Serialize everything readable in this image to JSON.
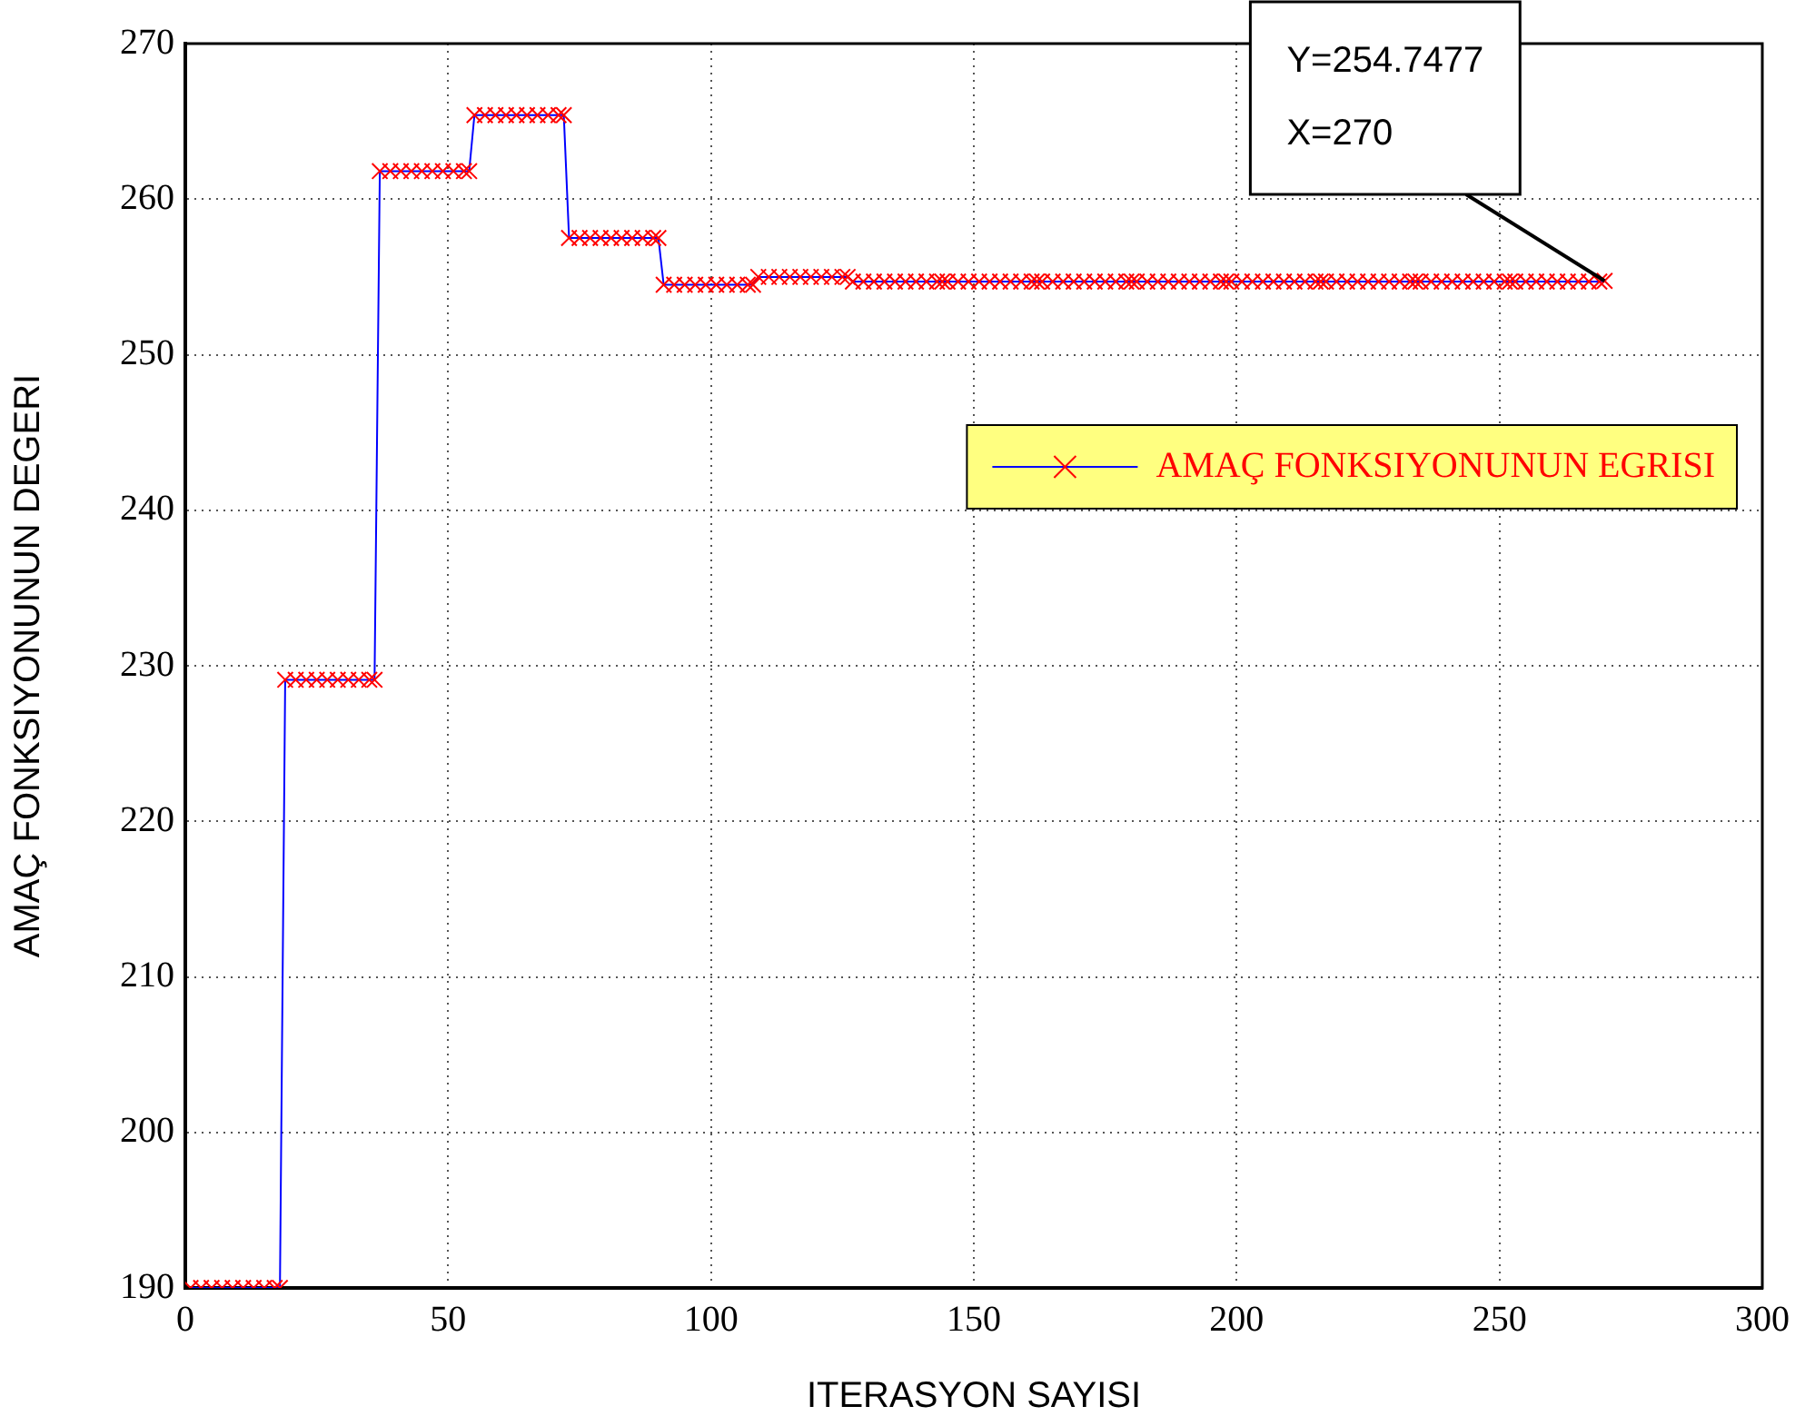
{
  "chart_data": {
    "type": "line",
    "xlabel": "ITERASYON SAYISI",
    "ylabel": "AMAÇ FONKSIYONUNUN DEGERI",
    "xlim": [
      0,
      300
    ],
    "xticks": [
      0,
      50,
      100,
      150,
      200,
      250,
      300
    ],
    "ylim": [
      190,
      270
    ],
    "yticks": [
      190,
      200,
      210,
      220,
      230,
      240,
      250,
      260,
      270
    ],
    "grid": true,
    "legend": "right",
    "marker": "cross",
    "line_style": "solid",
    "annotations": [
      {
        "text": "Y=254.7477\nX=270",
        "x": 270,
        "y": 254.7477
      }
    ],
    "series": [
      {
        "name": "AMAÇ FONKSIYONUNUN EGRISI",
        "color": "#ff0000",
        "x": [
          1,
          3,
          5,
          7,
          9,
          11,
          13,
          15,
          17,
          18,
          19,
          21,
          23,
          25,
          27,
          29,
          31,
          33,
          35,
          36,
          37,
          39,
          41,
          43,
          45,
          47,
          49,
          51,
          53,
          54,
          55,
          57,
          59,
          61,
          63,
          65,
          67,
          69,
          71,
          72,
          73,
          75,
          77,
          79,
          81,
          83,
          85,
          87,
          89,
          90,
          91,
          93,
          95,
          97,
          99,
          101,
          103,
          105,
          107,
          108,
          109,
          111,
          113,
          115,
          117,
          119,
          121,
          123,
          125,
          126,
          127,
          129,
          131,
          133,
          135,
          137,
          139,
          141,
          143,
          144,
          145,
          147,
          149,
          151,
          153,
          155,
          157,
          159,
          161,
          162,
          163,
          165,
          167,
          169,
          171,
          173,
          175,
          177,
          179,
          180,
          181,
          183,
          185,
          187,
          189,
          191,
          193,
          195,
          197,
          198,
          199,
          201,
          203,
          205,
          207,
          209,
          211,
          213,
          215,
          216,
          217,
          219,
          221,
          223,
          225,
          227,
          229,
          231,
          233,
          234,
          235,
          237,
          239,
          241,
          243,
          245,
          247,
          249,
          251,
          252,
          253,
          255,
          257,
          259,
          261,
          263,
          265,
          267,
          269,
          270
        ],
        "values": [
          190,
          190,
          190,
          190,
          190,
          190,
          190,
          190,
          190,
          190,
          229.1,
          229.1,
          229.1,
          229.1,
          229.1,
          229.1,
          229.1,
          229.1,
          229.1,
          229.1,
          261.8,
          261.8,
          261.8,
          261.8,
          261.8,
          261.8,
          261.8,
          261.8,
          261.8,
          261.8,
          265.4,
          265.4,
          265.4,
          265.4,
          265.4,
          265.4,
          265.4,
          265.4,
          265.4,
          265.4,
          257.5,
          257.5,
          257.5,
          257.5,
          257.5,
          257.5,
          257.5,
          257.5,
          257.5,
          257.5,
          254.5,
          254.5,
          254.5,
          254.5,
          254.5,
          254.5,
          254.5,
          254.5,
          254.5,
          254.5,
          255,
          255,
          255,
          255,
          255,
          255,
          255,
          255,
          255,
          255,
          254.7,
          254.7,
          254.7,
          254.7,
          254.7,
          254.7,
          254.7,
          254.7,
          254.7,
          254.7,
          254.7,
          254.7,
          254.7,
          254.7,
          254.7,
          254.7,
          254.7,
          254.7,
          254.7,
          254.7,
          254.7,
          254.7,
          254.7,
          254.7,
          254.7,
          254.7,
          254.7,
          254.7,
          254.7,
          254.7,
          254.7,
          254.7,
          254.7,
          254.7,
          254.7,
          254.7,
          254.7,
          254.7,
          254.7,
          254.7,
          254.7,
          254.7,
          254.7,
          254.7,
          254.7,
          254.7,
          254.7,
          254.7,
          254.7,
          254.7,
          254.7,
          254.7,
          254.7,
          254.7,
          254.7,
          254.7,
          254.7,
          254.7,
          254.7,
          254.7,
          254.7,
          254.7,
          254.7,
          254.7,
          254.7,
          254.7,
          254.7,
          254.7,
          254.7,
          254.7,
          254.7,
          254.7,
          254.7,
          254.7,
          254.7,
          254.7,
          254.7,
          254.7,
          254.7,
          254.7477
        ]
      }
    ]
  }
}
